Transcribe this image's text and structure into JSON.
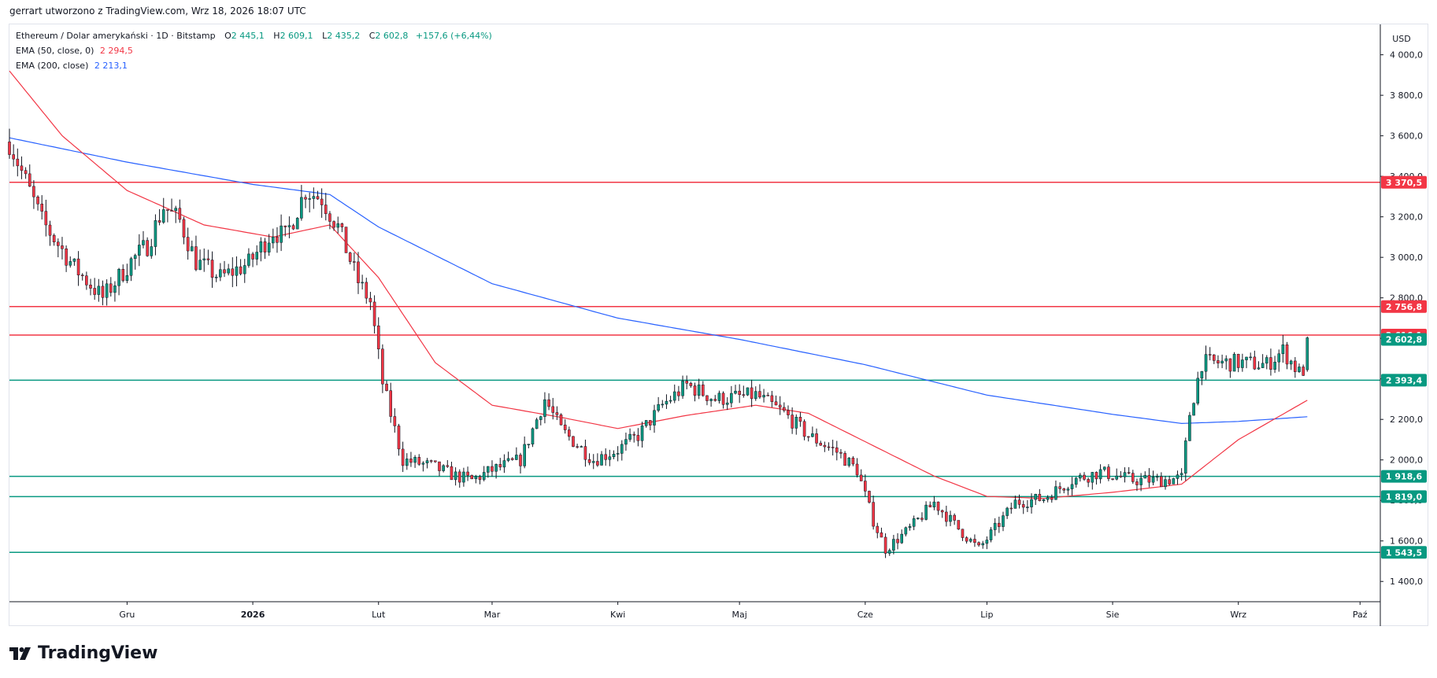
{
  "header": {
    "title": "gerrart utworzono z TradingView.com, Wrz 18, 2026 18:07 UTC"
  },
  "legend": {
    "symbol": "Ethereum / Dolar amerykański · 1D · Bitstamp",
    "o_label": "O",
    "o_value": "2 445,1",
    "h_label": "H",
    "h_value": "2 609,1",
    "l_label": "L",
    "l_value": "2 435,2",
    "c_label": "C",
    "c_value": "2 602,8",
    "change": "+157,6 (+6,44%)",
    "ema50_label": "EMA (50, close, 0)",
    "ema50_value": "2 294,5",
    "ema200_label": "EMA (200, close)",
    "ema200_value": "2 213,1"
  },
  "footer": {
    "brand": "TradingView"
  },
  "colors": {
    "up": "#089981",
    "down": "#f23645",
    "ema50": "#f23645",
    "ema200": "#2962ff",
    "support": "#089981",
    "resistance": "#f23645",
    "grid": "#e0e3eb",
    "text": "#131722"
  },
  "chart_data": {
    "type": "candlestick",
    "symbol": "Ethereum / Dolar amerykański",
    "interval": "1D",
    "exchange": "Bitstamp",
    "currency": "USD",
    "ylim": [
      1300,
      4150
    ],
    "y_ticks": [
      "1 400,0",
      "1 600,0",
      "1 800,0",
      "2 000,0",
      "2 200,0",
      "2 400,0",
      "2 600,0",
      "2 800,0",
      "3 000,0",
      "3 200,0",
      "3 400,0",
      "3 600,0",
      "3 800,0",
      "4 000,0"
    ],
    "y_tick_values": [
      1400,
      1600,
      1800,
      2000,
      2200,
      2400,
      2600,
      2800,
      3000,
      3200,
      3400,
      3600,
      3800,
      4000
    ],
    "x_labels": [
      "Gru",
      "2026",
      "Lut",
      "Mar",
      "Kwi",
      "Maj",
      "Cze",
      "Lip",
      "Sie",
      "Wrz",
      "Paź"
    ],
    "x_label_dates": [
      "2025-12-01",
      "2026-01-01",
      "2026-02-01",
      "2026-03-01",
      "2026-04-01",
      "2026-05-01",
      "2026-06-01",
      "2026-07-01",
      "2026-08-01",
      "2026-09-01",
      "2026-10-01"
    ],
    "date_range": [
      "2025-11-02",
      "2026-10-06"
    ],
    "last_date": "2026-09-18",
    "horizontal_levels": [
      {
        "value": 3370.5,
        "label": "3 370,5",
        "color": "#f23645"
      },
      {
        "value": 2756.8,
        "label": "2 756,8",
        "color": "#f23645"
      },
      {
        "value": 2616.1,
        "label": "2 616,1",
        "color": "#f23645"
      },
      {
        "value": 2393.4,
        "label": "2 393,4",
        "color": "#089981"
      },
      {
        "value": 1918.6,
        "label": "1 918,6",
        "color": "#089981"
      },
      {
        "value": 1819.0,
        "label": "1 819,0",
        "color": "#089981"
      },
      {
        "value": 1543.5,
        "label": "1 543,5",
        "color": "#089981"
      }
    ],
    "last_price": {
      "value": 2602.8,
      "label": "2 602,8",
      "color": "#089981"
    },
    "close_anchors": [
      [
        "2025-11-02",
        3570
      ],
      [
        "2025-11-10",
        3180
      ],
      [
        "2025-11-18",
        2950
      ],
      [
        "2025-11-25",
        2800
      ],
      [
        "2025-12-02",
        2980
      ],
      [
        "2025-12-06",
        3060
      ],
      [
        "2025-12-10",
        3250
      ],
      [
        "2025-12-14",
        3180
      ],
      [
        "2025-12-18",
        2980
      ],
      [
        "2025-12-24",
        2900
      ],
      [
        "2025-12-31",
        2970
      ],
      [
        "2026-01-06",
        3130
      ],
      [
        "2026-01-09",
        3100
      ],
      [
        "2026-01-14",
        3330
      ],
      [
        "2026-01-18",
        3290
      ],
      [
        "2026-01-22",
        3150
      ],
      [
        "2026-01-27",
        2880
      ],
      [
        "2026-01-30",
        2780
      ],
      [
        "2026-02-02",
        2380
      ],
      [
        "2026-02-05",
        2150
      ],
      [
        "2026-02-07",
        2000
      ],
      [
        "2026-02-14",
        1970
      ],
      [
        "2026-02-20",
        1920
      ],
      [
        "2026-02-24",
        1900
      ],
      [
        "2026-03-01",
        1950
      ],
      [
        "2026-03-08",
        2000
      ],
      [
        "2026-03-14",
        2300
      ],
      [
        "2026-03-18",
        2150
      ],
      [
        "2026-03-26",
        2000
      ],
      [
        "2026-04-01",
        2050
      ],
      [
        "2026-04-06",
        2120
      ],
      [
        "2026-04-12",
        2270
      ],
      [
        "2026-04-18",
        2370
      ],
      [
        "2026-04-25",
        2300
      ],
      [
        "2026-05-05",
        2320
      ],
      [
        "2026-05-12",
        2230
      ],
      [
        "2026-05-18",
        2120
      ],
      [
        "2026-05-25",
        2040
      ],
      [
        "2026-05-30",
        1950
      ],
      [
        "2026-06-03",
        1700
      ],
      [
        "2026-06-06",
        1560
      ],
      [
        "2026-06-12",
        1660
      ],
      [
        "2026-06-18",
        1790
      ],
      [
        "2026-06-24",
        1660
      ],
      [
        "2026-06-29",
        1560
      ],
      [
        "2026-07-03",
        1660
      ],
      [
        "2026-07-08",
        1790
      ],
      [
        "2026-07-15",
        1810
      ],
      [
        "2026-07-22",
        1900
      ],
      [
        "2026-07-29",
        1940
      ],
      [
        "2026-08-06",
        1900
      ],
      [
        "2026-08-13",
        1900
      ],
      [
        "2026-08-18",
        1910
      ],
      [
        "2026-08-20",
        2230
      ],
      [
        "2026-08-23",
        2480
      ],
      [
        "2026-09-01",
        2480
      ],
      [
        "2026-09-08",
        2470
      ],
      [
        "2026-09-12",
        2540
      ],
      [
        "2026-09-16",
        2430
      ],
      [
        "2026-09-17",
        2445
      ],
      [
        "2026-09-18",
        2602.8
      ]
    ],
    "ema50_anchors": [
      [
        "2025-11-02",
        3920
      ],
      [
        "2025-11-15",
        3600
      ],
      [
        "2025-12-01",
        3330
      ],
      [
        "2025-12-20",
        3160
      ],
      [
        "2026-01-06",
        3100
      ],
      [
        "2026-01-20",
        3160
      ],
      [
        "2026-02-01",
        2900
      ],
      [
        "2026-02-15",
        2480
      ],
      [
        "2026-03-01",
        2270
      ],
      [
        "2026-03-18",
        2210
      ],
      [
        "2026-04-01",
        2155
      ],
      [
        "2026-04-18",
        2220
      ],
      [
        "2026-05-05",
        2270
      ],
      [
        "2026-05-18",
        2230
      ],
      [
        "2026-06-01",
        2090
      ],
      [
        "2026-06-18",
        1920
      ],
      [
        "2026-07-01",
        1820
      ],
      [
        "2026-07-15",
        1810
      ],
      [
        "2026-08-01",
        1840
      ],
      [
        "2026-08-18",
        1880
      ],
      [
        "2026-09-01",
        2100
      ],
      [
        "2026-09-18",
        2294.5
      ]
    ],
    "ema200_anchors": [
      [
        "2025-11-02",
        3590
      ],
      [
        "2025-12-01",
        3470
      ],
      [
        "2026-01-01",
        3360
      ],
      [
        "2026-01-20",
        3310
      ],
      [
        "2026-02-01",
        3150
      ],
      [
        "2026-03-01",
        2870
      ],
      [
        "2026-04-01",
        2700
      ],
      [
        "2026-05-01",
        2595
      ],
      [
        "2026-06-01",
        2470
      ],
      [
        "2026-07-01",
        2320
      ],
      [
        "2026-08-01",
        2225
      ],
      [
        "2026-08-18",
        2180
      ],
      [
        "2026-09-01",
        2190
      ],
      [
        "2026-09-18",
        2213.1
      ]
    ]
  }
}
